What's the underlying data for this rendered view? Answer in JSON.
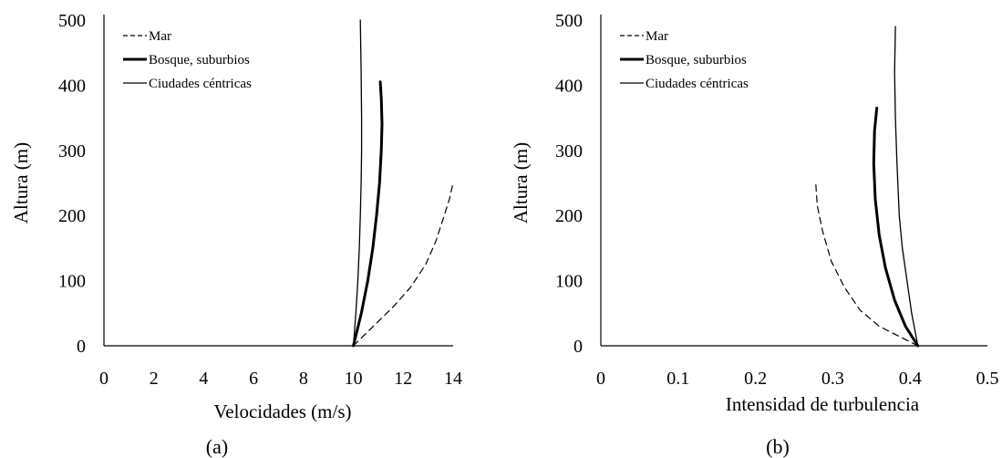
{
  "chart_data": [
    {
      "type": "line",
      "panel_label": "(a)",
      "xlabel": "Velocidades (m/s)",
      "ylabel": "Altura (m)",
      "xlim": [
        0,
        14
      ],
      "ylim": [
        0,
        500
      ],
      "xticks": [
        0,
        2,
        4,
        6,
        8,
        10,
        12,
        14
      ],
      "yticks": [
        0,
        100,
        200,
        300,
        400,
        500
      ],
      "grid": false,
      "legend_position": "top-left",
      "series": [
        {
          "name": "Mar",
          "style": "dashed",
          "x": [
            10,
            10.8,
            11.6,
            12.3,
            12.9,
            13.3,
            13.6,
            13.85,
            14
          ],
          "y": [
            0,
            30,
            60,
            90,
            125,
            160,
            195,
            225,
            250
          ]
        },
        {
          "name": "Bosque, suburbios",
          "style": "thick",
          "x": [
            10,
            10.32,
            10.58,
            10.78,
            10.93,
            11.05,
            11.12,
            11.15,
            11.12,
            11.08
          ],
          "y": [
            0,
            50,
            100,
            150,
            200,
            250,
            300,
            340,
            380,
            405
          ]
        },
        {
          "name": "Ciudades céntricas",
          "style": "thin",
          "x": [
            10,
            10.1,
            10.18,
            10.24,
            10.28,
            10.31,
            10.33,
            10.33,
            10.31,
            10.28
          ],
          "y": [
            0,
            50,
            100,
            150,
            200,
            250,
            300,
            350,
            420,
            500
          ]
        }
      ]
    },
    {
      "type": "line",
      "panel_label": "(b)",
      "xlabel": "Intensidad de turbulencia",
      "ylabel": "Altura (m)",
      "xlim": [
        0,
        0.5
      ],
      "ylim": [
        0,
        500
      ],
      "xticks": [
        "0",
        "0.1",
        "0.2",
        "0.3",
        "0.4",
        "0.5"
      ],
      "yticks": [
        0,
        100,
        200,
        300,
        400,
        500
      ],
      "grid": false,
      "legend_position": "top-left",
      "series": [
        {
          "name": "Mar",
          "style": "dashed",
          "x": [
            0.41,
            0.385,
            0.36,
            0.335,
            0.315,
            0.298,
            0.287,
            0.28,
            0.278
          ],
          "y": [
            0,
            15,
            30,
            55,
            90,
            130,
            175,
            215,
            250
          ]
        },
        {
          "name": "Bosque, suburbios",
          "style": "thick",
          "x": [
            0.41,
            0.394,
            0.38,
            0.368,
            0.36,
            0.355,
            0.353,
            0.354,
            0.357
          ],
          "y": [
            0,
            30,
            70,
            120,
            170,
            225,
            280,
            330,
            365
          ]
        },
        {
          "name": "Ciudades céntricas",
          "style": "thin",
          "x": [
            0.41,
            0.402,
            0.396,
            0.39,
            0.386,
            0.383,
            0.381,
            0.38,
            0.381
          ],
          "y": [
            0,
            50,
            100,
            150,
            200,
            280,
            350,
            420,
            490
          ]
        }
      ]
    }
  ]
}
